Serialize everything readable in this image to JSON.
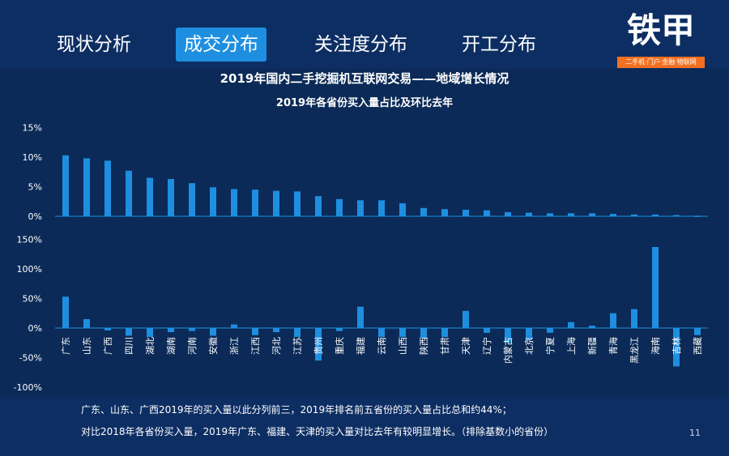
{
  "tabs": [
    {
      "label": "现状分析",
      "active": false
    },
    {
      "label": "成交分布",
      "active": true
    },
    {
      "label": "关注度分布",
      "active": false
    },
    {
      "label": "开工分布",
      "active": false
    }
  ],
  "logo": {
    "text": "铁甲",
    "tagline": "二手机·门户·金融·物联网"
  },
  "title": "2019年国内二手挖掘机互联网交易——地域增长情况",
  "subtitle": "2019年各省份买入量占比及环比去年",
  "colors": {
    "background": "#0b2a57",
    "bar": "#1e8fe0",
    "active_tab": "#1e8fe0",
    "logo_accent": "#f37021"
  },
  "chart_data": [
    {
      "type": "bar",
      "categories": [
        "广东",
        "山东",
        "广西",
        "四川",
        "湖北",
        "湖南",
        "河南",
        "安徽",
        "浙江",
        "江西",
        "河北",
        "江苏",
        "贵州",
        "重庆",
        "福建",
        "云南",
        "山西",
        "陕西",
        "甘肃",
        "天津",
        "辽宁",
        "内蒙古",
        "北京",
        "宁夏",
        "上海",
        "新疆",
        "青海",
        "黑龙江",
        "海南",
        "吉林",
        "西藏"
      ],
      "values": [
        10.3,
        9.8,
        9.4,
        7.7,
        6.5,
        6.3,
        5.6,
        4.9,
        4.6,
        4.5,
        4.3,
        4.2,
        3.4,
        2.9,
        2.7,
        2.7,
        2.2,
        1.4,
        1.2,
        1.1,
        1.0,
        0.7,
        0.6,
        0.5,
        0.5,
        0.5,
        0.4,
        0.3,
        0.3,
        0.2,
        0.1
      ],
      "ylim": [
        0,
        15
      ],
      "yticks": [
        "15%",
        "10%",
        "5%",
        "0%"
      ],
      "ytick_values": [
        15,
        10,
        5,
        0
      ]
    },
    {
      "type": "bar",
      "categories": [
        "广东",
        "山东",
        "广西",
        "四川",
        "湖北",
        "湖南",
        "河南",
        "安徽",
        "浙江",
        "江西",
        "河北",
        "江苏",
        "贵州",
        "重庆",
        "福建",
        "云南",
        "山西",
        "陕西",
        "甘肃",
        "天津",
        "辽宁",
        "内蒙古",
        "北京",
        "宁夏",
        "上海",
        "新疆",
        "青海",
        "黑龙江",
        "海南",
        "吉林",
        "西藏"
      ],
      "values": [
        53,
        15,
        -4,
        -13,
        -15,
        -7,
        -5,
        -13,
        6,
        -12,
        -7,
        -15,
        -55,
        -5,
        36,
        -15,
        -15,
        -17,
        -15,
        29,
        -8,
        -25,
        -20,
        -8,
        10,
        4,
        25,
        32,
        137,
        -65,
        -12
      ],
      "ylim": [
        -100,
        150
      ],
      "yticks": [
        "150%",
        "100%",
        "50%",
        "0%",
        "-50%",
        "-100%"
      ],
      "ytick_values": [
        150,
        100,
        50,
        0,
        -50,
        -100
      ]
    }
  ],
  "notes": [
    "广东、山东、广西2019年的买入量以此分列前三，2019年排名前五省份的买入量占比总和约44%；",
    "对比2018年各省份买入量，2019年广东、福建、天津的买入量对比去年有较明显增长。（排除基数小的省份）"
  ],
  "page_number": "11"
}
